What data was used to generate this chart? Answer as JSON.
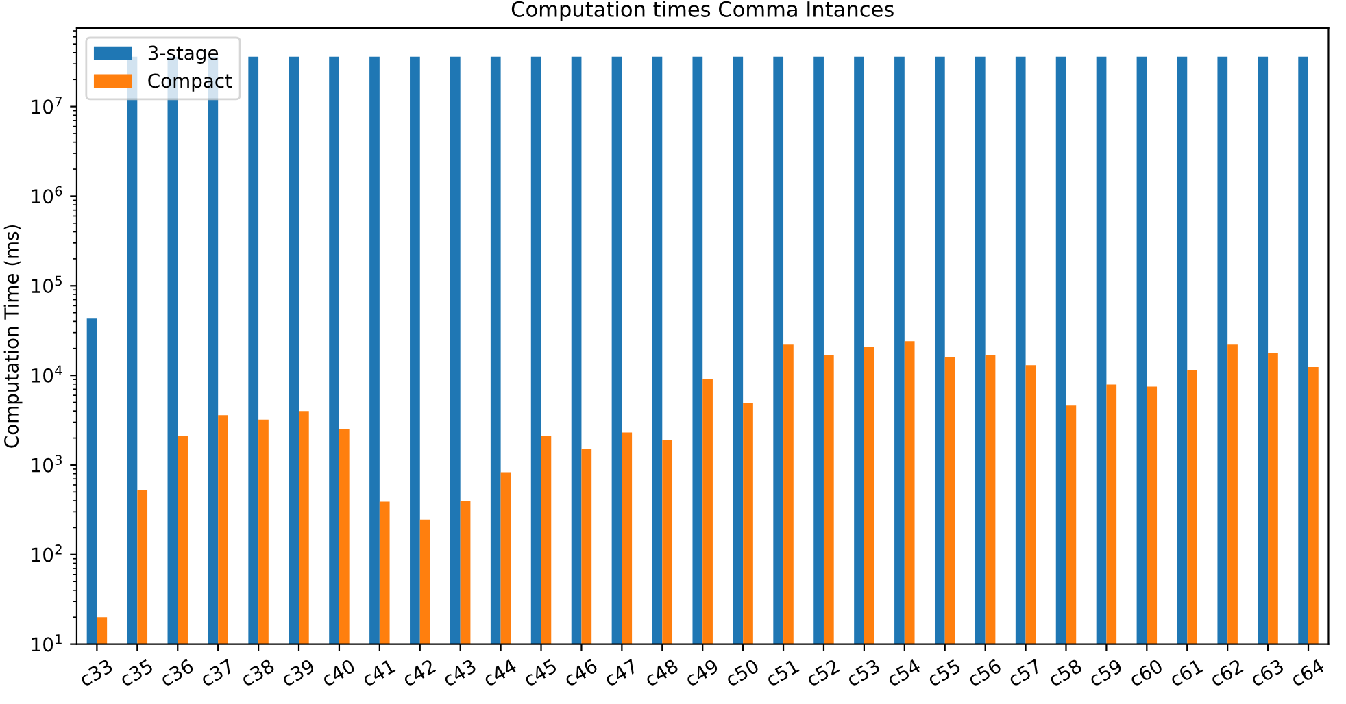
{
  "chart_data": {
    "type": "bar",
    "title": "Computation times Comma Intances",
    "ylabel": "Computation Time (ms)",
    "categories": [
      "c33",
      "c35",
      "c36",
      "c37",
      "c38",
      "c39",
      "c40",
      "c41",
      "c42",
      "c43",
      "c44",
      "c45",
      "c46",
      "c47",
      "c48",
      "c49",
      "c50",
      "c51",
      "c52",
      "c53",
      "c54",
      "c55",
      "c56",
      "c57",
      "c58",
      "c59",
      "c60",
      "c61",
      "c62",
      "c63",
      "c64"
    ],
    "series": [
      {
        "name": "3-stage",
        "color": "#1f77b4",
        "values": [
          43000,
          36000000,
          36000000,
          36000000,
          36000000,
          36000000,
          36000000,
          36000000,
          36000000,
          36000000,
          36000000,
          36000000,
          36000000,
          36000000,
          36000000,
          36000000,
          36000000,
          36000000,
          36000000,
          36000000,
          36000000,
          36000000,
          36000000,
          36000000,
          36000000,
          36000000,
          36000000,
          36000000,
          36000000,
          36000000,
          36000000
        ]
      },
      {
        "name": "Compact",
        "color": "#ff7f0e",
        "values": [
          20,
          520,
          2100,
          3600,
          3200,
          4000,
          2500,
          390,
          245,
          400,
          830,
          2100,
          1500,
          2300,
          1900,
          9000,
          4900,
          22000,
          17000,
          21000,
          24000,
          16000,
          17000,
          13000,
          4600,
          7900,
          7500,
          11500,
          22000,
          17700,
          12400
        ]
      }
    ],
    "log": "y",
    "ylim": [
      10,
      75000000
    ],
    "yticks": [
      {
        "value": 10,
        "label": "10$^{1}$"
      },
      {
        "value": 100,
        "label": "10$^{2}$"
      },
      {
        "value": 1000,
        "label": "10$^{3}$"
      },
      {
        "value": 10000,
        "label": "10$^{4}$"
      },
      {
        "value": 100000,
        "label": "10$^{5}$"
      },
      {
        "value": 1000000,
        "label": "10$^{6}$"
      },
      {
        "value": 10000000,
        "label": "10$^{7}$"
      }
    ],
    "grid": false,
    "legend": "top left"
  }
}
